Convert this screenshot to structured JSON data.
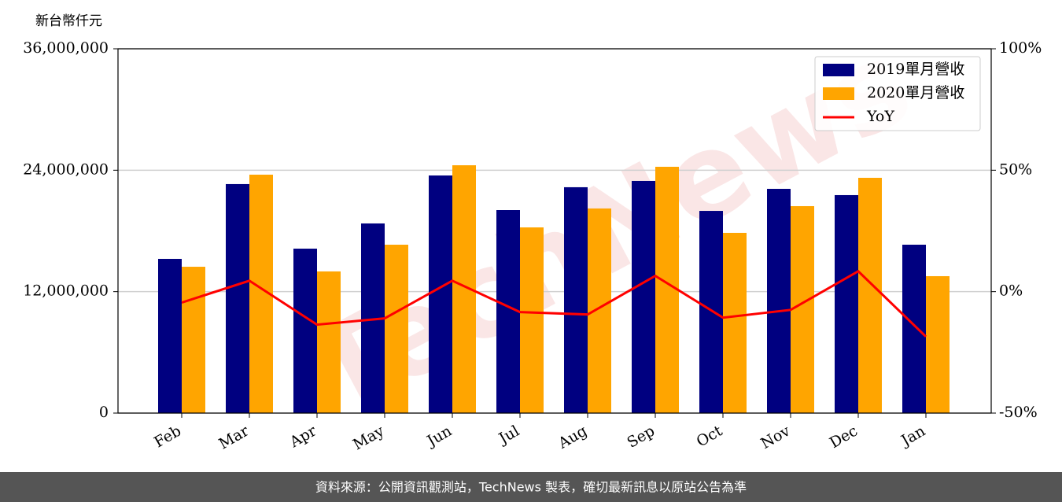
{
  "chart_data": {
    "type": "bar",
    "y_label": "新台幣仟元",
    "watermark": "TechNews",
    "footer": "資料來源：公開資訊觀測站，TechNews 製表，確切最新訊息以原站公告為準",
    "categories": [
      "Feb",
      "Mar",
      "Apr",
      "May",
      "Jun",
      "Jul",
      "Aug",
      "Sep",
      "Oct",
      "Nov",
      "Dec",
      "Jan"
    ],
    "series": [
      {
        "name": "2019單月營收",
        "color": "#000080",
        "type": "bar",
        "values": [
          15240000,
          22630000,
          16250000,
          18740000,
          23480000,
          20060000,
          22320000,
          22940000,
          19980000,
          22160000,
          21540000,
          16640000
        ]
      },
      {
        "name": "2020單月營收",
        "color": "#ffa500",
        "type": "bar",
        "values": [
          14460000,
          23560000,
          14000000,
          16640000,
          24490000,
          18350000,
          20220000,
          24340000,
          17810000,
          20450000,
          23250000,
          13530000
        ]
      },
      {
        "name": "YoY",
        "color": "#ff0000",
        "type": "line",
        "axis": "y2",
        "values": [
          -4.5,
          4.5,
          -13.6,
          -11,
          4.5,
          -8.4,
          -9.4,
          6.5,
          -10.7,
          -7.5,
          8.4,
          -18.5
        ]
      }
    ],
    "ylim": [
      0,
      36000000
    ],
    "yticks": [
      {
        "value": 0,
        "label": "0"
      },
      {
        "value": 12000000,
        "label": "12,000,000"
      },
      {
        "value": 24000000,
        "label": "24,000,000"
      },
      {
        "value": 36000000,
        "label": "36,000,000"
      }
    ],
    "y2lim": [
      -50,
      100
    ],
    "y2ticks": [
      {
        "value": -50,
        "label": "-50%"
      },
      {
        "value": 0,
        "label": "0%"
      },
      {
        "value": 50,
        "label": "50%"
      },
      {
        "value": 100,
        "label": "100%"
      }
    ],
    "grid": true,
    "legend": "upper right"
  }
}
